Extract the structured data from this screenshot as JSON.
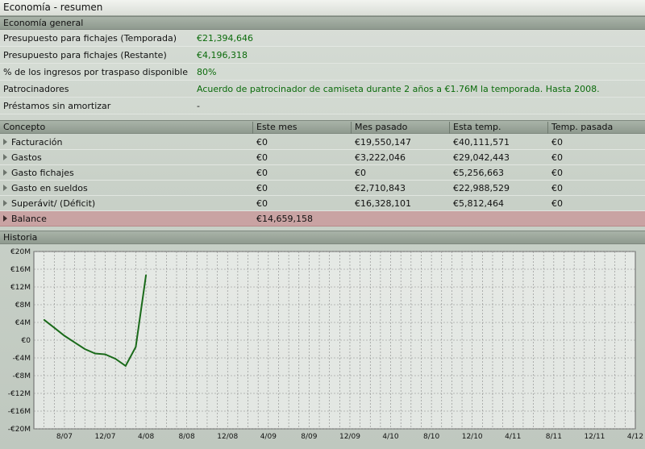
{
  "window": {
    "title": "Economía - resumen"
  },
  "general": {
    "header": "Economía general",
    "rows": [
      {
        "label": "Presupuesto para fichajes (Temporada)",
        "value": "€21,394,646"
      },
      {
        "label": "Presupuesto para fichajes (Restante)",
        "value": "€4,196,318"
      },
      {
        "label": "% de los ingresos por traspaso disponible",
        "value": "80%"
      },
      {
        "label": "Patrocinadores",
        "value": "Acuerdo de patrocinador de camiseta durante 2 años a €1.76M la temporada. Hasta 2008."
      },
      {
        "label": "Préstamos sin amortizar",
        "value": "-"
      }
    ]
  },
  "table": {
    "columns": [
      "Concepto",
      "Este mes",
      "Mes pasado",
      "Esta temp.",
      "Temp. pasada"
    ],
    "rows": [
      {
        "concept": "Facturación",
        "este_mes": "€0",
        "mes_pasado": "€19,550,147",
        "esta_temp": "€40,111,571",
        "temp_pasada": "€0"
      },
      {
        "concept": "Gastos",
        "este_mes": "€0",
        "mes_pasado": "€3,222,046",
        "esta_temp": "€29,042,443",
        "temp_pasada": "€0"
      },
      {
        "concept": "Gasto fichajes",
        "este_mes": "€0",
        "mes_pasado": "€0",
        "esta_temp": "€5,256,663",
        "temp_pasada": "€0"
      },
      {
        "concept": "Gasto en sueldos",
        "este_mes": "€0",
        "mes_pasado": "€2,710,843",
        "esta_temp": "€22,988,529",
        "temp_pasada": "€0"
      },
      {
        "concept": "Superávit/ (Déficit)",
        "este_mes": "€0",
        "mes_pasado": "€16,328,101",
        "esta_temp": "€5,812,464",
        "temp_pasada": "€0"
      }
    ],
    "balance": {
      "concept": "Balance",
      "este_mes": "€14,659,158"
    }
  },
  "history": {
    "header": "Historia"
  },
  "chart_data": {
    "type": "line",
    "y_tick_labels": [
      "€20M",
      "€16M",
      "€12M",
      "€8M",
      "€4M",
      "€0",
      "-€4M",
      "-€8M",
      "-€12M",
      "-€16M",
      "-€20M"
    ],
    "ylim": [
      -20,
      20
    ],
    "y_unit": "€M",
    "x_tick_labels": [
      "8/07",
      "12/07",
      "4/08",
      "8/08",
      "12/08",
      "4/09",
      "8/09",
      "12/09",
      "4/10",
      "8/10",
      "12/10",
      "4/11",
      "8/11",
      "12/11",
      "4/12"
    ],
    "series": [
      {
        "values": [
          {
            "x": "6/07",
            "y": 4.6
          },
          {
            "x": "7/07",
            "y": 2.8
          },
          {
            "x": "8/07",
            "y": 1.0
          },
          {
            "x": "9/07",
            "y": -0.5
          },
          {
            "x": "10/07",
            "y": -2.0
          },
          {
            "x": "11/07",
            "y": -3.0
          },
          {
            "x": "12/07",
            "y": -3.2
          },
          {
            "x": "1/08",
            "y": -4.2
          },
          {
            "x": "2/08",
            "y": -5.8
          },
          {
            "x": "3/08",
            "y": -1.5
          },
          {
            "x": "4/08",
            "y": 14.7
          }
        ]
      }
    ],
    "line_color": "#1a6a1a",
    "grid": true
  }
}
